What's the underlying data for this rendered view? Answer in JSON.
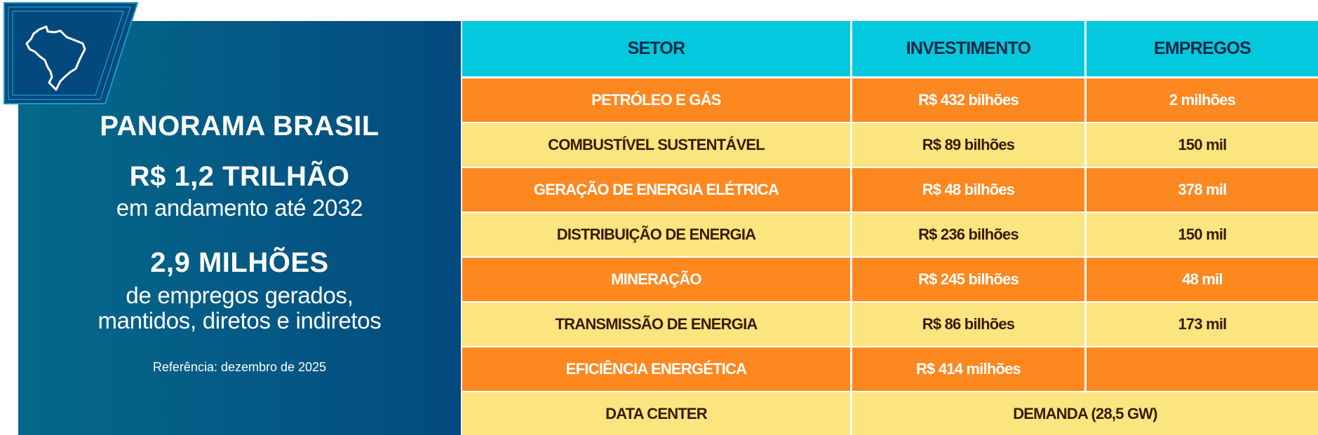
{
  "panel": {
    "title": "PANORAMA BRASIL",
    "investment_total": "R$ 1,2 TRILHÃO",
    "investment_caption": "em andamento até 2032",
    "jobs_total": "2,9 MILHÕES",
    "jobs_caption_1": "de empregos gerados,",
    "jobs_caption_2": "mantidos, diretos e indiretos",
    "reference": "Referência: dezembro de 2025",
    "icon": "brazil-map-icon"
  },
  "table": {
    "headers": [
      "SETOR",
      "INVESTIMENTO",
      "EMPREGOS"
    ],
    "rows": [
      {
        "setor": "PETRÓLEO E GÁS",
        "investimento": "R$ 432 bilhões",
        "empregos": "2 milhões"
      },
      {
        "setor": "COMBUSTÍVEL SUSTENTÁVEL",
        "investimento": "R$ 89 bilhões",
        "empregos": "150 mil"
      },
      {
        "setor": "GERAÇÃO DE ENERGIA ELÉTRICA",
        "investimento": "R$ 48 bilhões",
        "empregos": "378 mil"
      },
      {
        "setor": "DISTRIBUIÇÃO DE ENERGIA",
        "investimento": "R$ 236 bilhões",
        "empregos": "150 mil"
      },
      {
        "setor": "MINERAÇÃO",
        "investimento": "R$ 245 bilhões",
        "empregos": "48 mil"
      },
      {
        "setor": "TRANSMISSÃO DE ENERGIA",
        "investimento": "R$ 86 bilhões",
        "empregos": "173 mil"
      },
      {
        "setor": "EFICIÊNCIA ENERGÉTICA",
        "investimento": "R$ 414 milhões",
        "empregos": ""
      },
      {
        "setor": "DATA CENTER",
        "merged": "DEMANDA (28,5 GW)"
      }
    ]
  },
  "colors": {
    "header": "#04c8dd",
    "orange_row": "#fd8820",
    "yellow_row": "#fce47e",
    "panel_blue": "#045784"
  }
}
